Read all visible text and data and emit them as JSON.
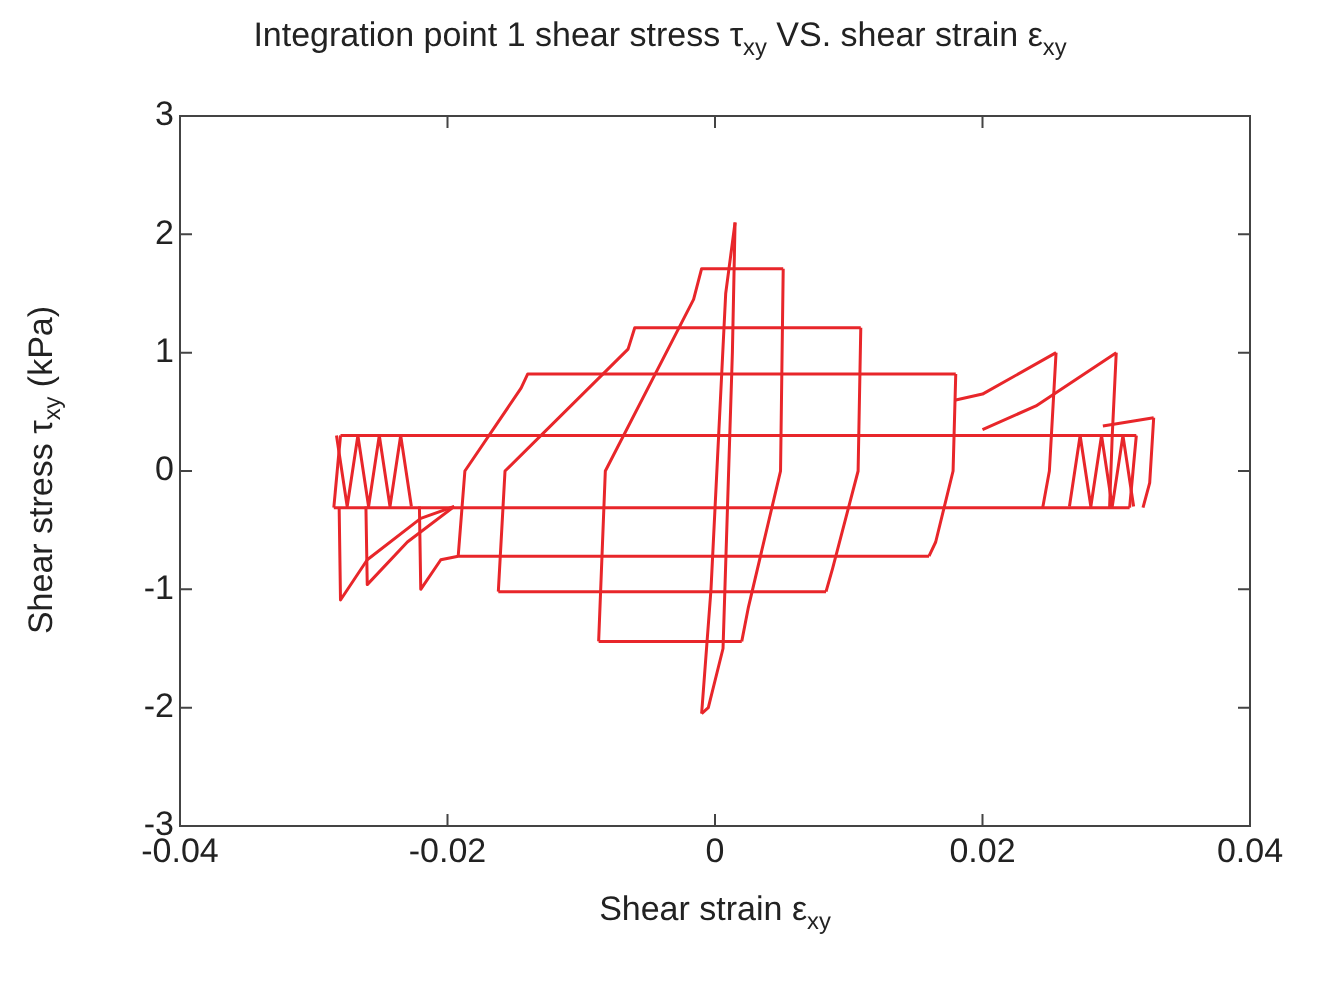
{
  "chart_data": {
    "type": "line",
    "title": "Integration point 1 shear stress τ$_{xy}$ VS. shear strain ε$_{xy}$",
    "xlabel": "Shear strain ε$_{xy}$",
    "ylabel": "Shear stress τ$_{xy}$ (kPa)",
    "xlim": [
      -0.04,
      0.04
    ],
    "xticks": [
      -0.04,
      -0.02,
      0,
      0.02,
      0.04
    ],
    "ylim": [
      -3,
      3
    ],
    "yticks": [
      -3,
      -2,
      -1,
      0,
      1,
      2,
      3
    ],
    "grid": false,
    "legend": false,
    "marker": "none",
    "line_style": "solid",
    "series": [
      {
        "color": "#e8262a",
        "x": [
          -0.001,
          -0.0003,
          0.0008,
          0.0015
        ],
        "values": [
          -2.05,
          -1.0,
          1.5,
          2.1
        ]
      },
      {
        "color": "#e8262a",
        "x": [
          -0.001,
          -0.0005,
          0.0006,
          0.0013,
          0.0015
        ],
        "values": [
          -2.05,
          -2.0,
          -1.5,
          1.0,
          2.1
        ]
      },
      {
        "color": "#e8262a",
        "x": [
          -0.0087,
          -0.0082,
          -0.0016,
          -0.001,
          0.0051
        ],
        "values": [
          -1.44,
          0,
          1.45,
          1.71,
          1.71
        ]
      },
      {
        "color": "#e8262a",
        "x": [
          0.002,
          0.0025,
          0.0049,
          0.0051
        ],
        "values": [
          -1.44,
          -1.15,
          0,
          1.71
        ]
      },
      {
        "color": "#e8262a",
        "x": [
          -0.0087,
          0.002
        ],
        "values": [
          -1.44,
          -1.44
        ]
      },
      {
        "color": "#e8262a",
        "x": [
          -0.0162,
          -0.0157,
          -0.0065,
          -0.006,
          0.0109
        ],
        "values": [
          -1.02,
          0,
          1.03,
          1.21,
          1.21
        ]
      },
      {
        "color": "#e8262a",
        "x": [
          0.0083,
          0.0088,
          0.0107,
          0.0109
        ],
        "values": [
          -1.02,
          -0.82,
          0,
          1.21
        ]
      },
      {
        "color": "#e8262a",
        "x": [
          -0.0162,
          0.0083
        ],
        "values": [
          -1.02,
          -1.02
        ]
      },
      {
        "color": "#e8262a",
        "x": [
          -0.0192,
          -0.0187,
          -0.0145,
          -0.014,
          0.018
        ],
        "values": [
          -0.72,
          0,
          0.7,
          0.82,
          0.82
        ]
      },
      {
        "color": "#e8262a",
        "x": [
          0.016,
          0.0165,
          0.0178,
          0.018
        ],
        "values": [
          -0.72,
          -0.6,
          0,
          0.82
        ]
      },
      {
        "color": "#e8262a",
        "x": [
          -0.028,
          0.0315
        ],
        "values": [
          0.3,
          0.3
        ]
      },
      {
        "color": "#e8262a",
        "x": [
          -0.0285,
          0.031
        ],
        "values": [
          -0.31,
          -0.31
        ]
      },
      {
        "color": "#e8262a",
        "x": [
          -0.0285,
          -0.028
        ],
        "values": [
          -0.31,
          0.3
        ]
      },
      {
        "color": "#e8262a",
        "x": [
          0.031,
          0.0315
        ],
        "values": [
          -0.31,
          0.3
        ]
      },
      {
        "color": "#e8262a",
        "x": [
          -0.0281,
          -0.028,
          -0.026,
          -0.022,
          -0.0195
        ],
        "values": [
          -0.31,
          -1.09,
          -0.75,
          -0.4,
          -0.3
        ]
      },
      {
        "color": "#e8262a",
        "x": [
          -0.0261,
          -0.026,
          -0.023,
          -0.0195
        ],
        "values": [
          -0.3,
          -0.96,
          -0.6,
          -0.3
        ]
      },
      {
        "color": "#e8262a",
        "x": [
          -0.0221,
          -0.022,
          -0.0205,
          -0.0192,
          0.016
        ],
        "values": [
          -0.3,
          -1.0,
          -0.75,
          -0.72,
          -0.72
        ]
      },
      {
        "color": "#e8262a",
        "x": [
          0.018,
          0.02,
          0.0255
        ],
        "values": [
          0.6,
          0.65,
          1.0
        ]
      },
      {
        "color": "#e8262a",
        "x": [
          0.0245,
          0.025,
          0.0255
        ],
        "values": [
          -0.31,
          0,
          1.0
        ]
      },
      {
        "color": "#e8262a",
        "x": [
          0.02,
          0.024,
          0.03
        ],
        "values": [
          0.35,
          0.55,
          1.0
        ]
      },
      {
        "color": "#e8262a",
        "x": [
          0.0295,
          0.0297,
          0.03
        ],
        "values": [
          -0.31,
          0.3,
          1.0
        ]
      },
      {
        "color": "#e8262a",
        "x": [
          0.029,
          0.0328
        ],
        "values": [
          0.38,
          0.45
        ]
      },
      {
        "color": "#e8262a",
        "x": [
          0.032,
          0.0325,
          0.0328
        ],
        "values": [
          -0.31,
          -0.1,
          0.45
        ]
      },
      {
        "color": "#e8262a",
        "x": [
          -0.0283,
          -0.0275,
          -0.0267,
          -0.0259,
          -0.0251,
          -0.0243,
          -0.0235,
          -0.0227
        ],
        "values": [
          0.3,
          -0.3,
          0.3,
          -0.3,
          0.3,
          -0.3,
          0.3,
          -0.3
        ]
      },
      {
        "color": "#e8262a",
        "x": [
          0.0265,
          0.0273,
          0.0281,
          0.0289,
          0.0297,
          0.0305,
          0.0313
        ],
        "values": [
          -0.3,
          0.3,
          -0.3,
          0.3,
          -0.3,
          0.3,
          -0.3
        ]
      }
    ]
  }
}
